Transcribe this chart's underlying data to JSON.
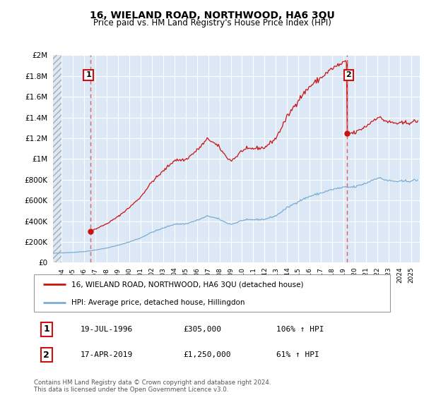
{
  "title": "16, WIELAND ROAD, NORTHWOOD, HA6 3QU",
  "subtitle": "Price paid vs. HM Land Registry's House Price Index (HPI)",
  "footer": "Contains HM Land Registry data © Crown copyright and database right 2024.\nThis data is licensed under the Open Government Licence v3.0.",
  "legend_line1": "16, WIELAND ROAD, NORTHWOOD, HA6 3QU (detached house)",
  "legend_line2": "HPI: Average price, detached house, Hillingdon",
  "transaction1_date": "19-JUL-1996",
  "transaction1_price": "£305,000",
  "transaction1_hpi": "106% ↑ HPI",
  "transaction2_date": "17-APR-2019",
  "transaction2_price": "£1,250,000",
  "transaction2_hpi": "61% ↑ HPI",
  "hpi_color": "#7aadd4",
  "price_color": "#cc1111",
  "dashed_color": "#e06060",
  "background_color": "#ffffff",
  "plot_bg_color": "#dce8f5",
  "ylim": [
    0,
    2000000
  ],
  "yticks": [
    0,
    200000,
    400000,
    600000,
    800000,
    1000000,
    1200000,
    1400000,
    1600000,
    1800000,
    2000000
  ],
  "xlim_start": 1993.25,
  "xlim_end": 2025.75,
  "transaction1_x": 1996.54,
  "transaction1_y": 305000,
  "transaction2_x": 2019.29,
  "transaction2_y": 1250000,
  "hatch_end_x": 1994.0
}
